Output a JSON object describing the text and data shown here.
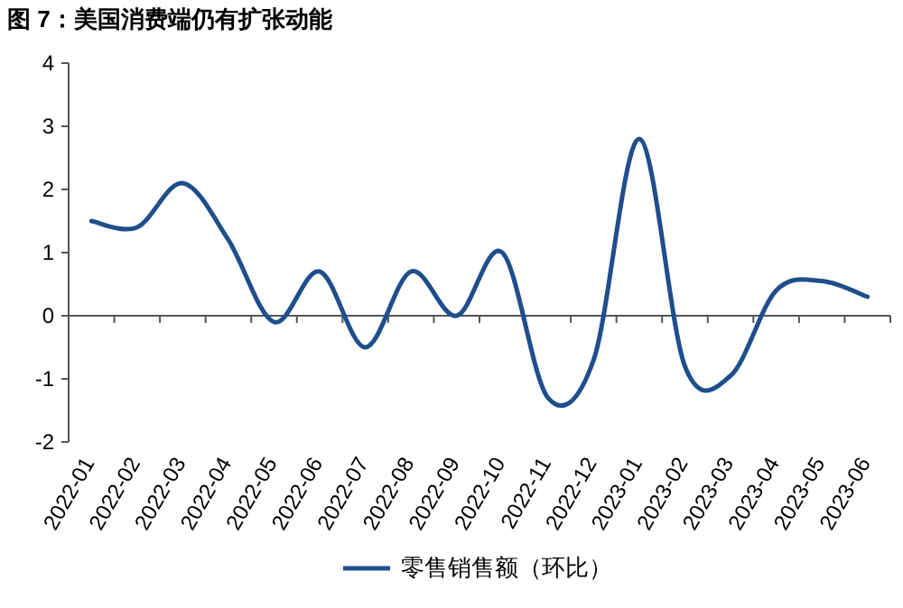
{
  "chart_data": {
    "type": "line",
    "title": "图 7：美国消费端仍有扩张动能",
    "categories": [
      "2022-01",
      "2022-02",
      "2022-03",
      "2022-04",
      "2022-05",
      "2022-06",
      "2022-07",
      "2022-08",
      "2022-09",
      "2022-10",
      "2022-11",
      "2022-12",
      "2023-01",
      "2023-02",
      "2023-03",
      "2023-04",
      "2023-05",
      "2023-06"
    ],
    "series": [
      {
        "name": "零售销售额（环比）",
        "color": "#1f4e8c",
        "values": [
          1.5,
          1.4,
          2.1,
          1.2,
          -0.1,
          0.7,
          -0.5,
          0.7,
          0.0,
          1.0,
          -1.3,
          -0.7,
          2.8,
          -0.8,
          -0.95,
          0.4,
          0.55,
          0.3
        ]
      }
    ],
    "ylim": [
      -2,
      4
    ],
    "yticks": [
      -2,
      -1,
      0,
      1,
      2,
      3,
      4
    ],
    "legend": "bottom",
    "line_style": "solid",
    "marker": "none"
  }
}
